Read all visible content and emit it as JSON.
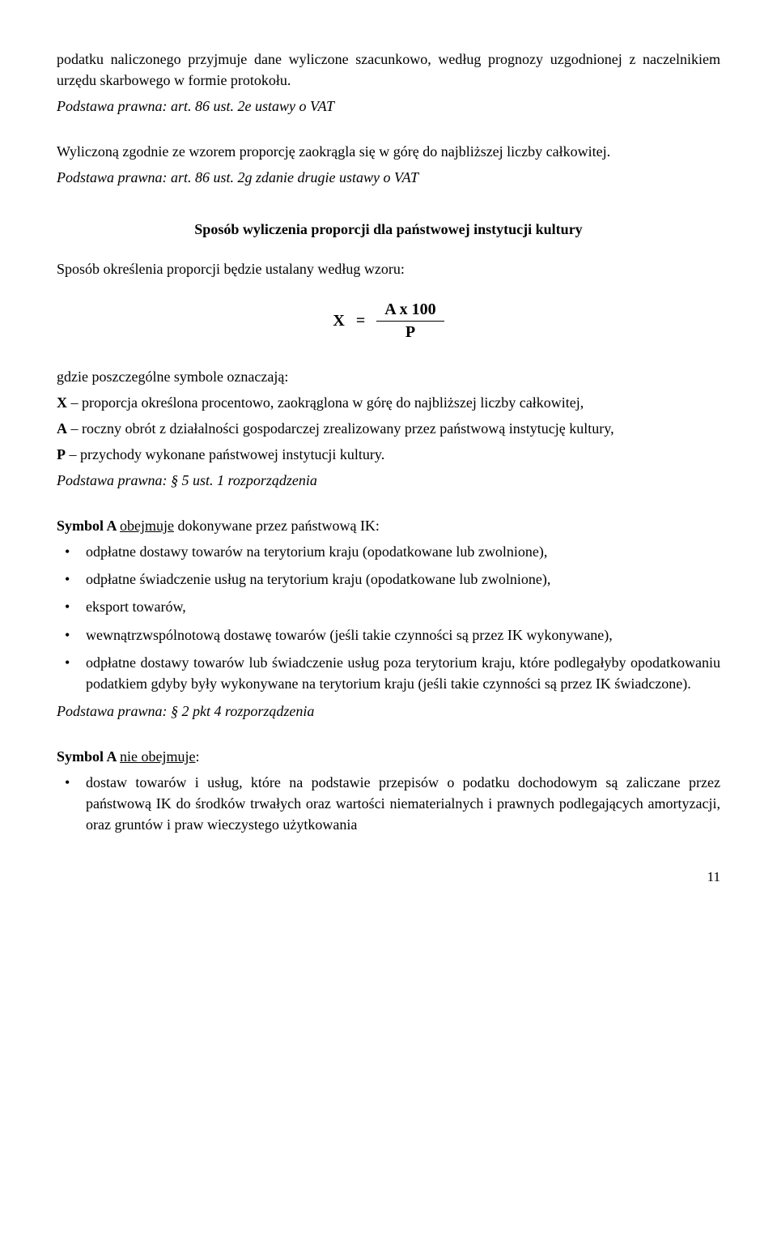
{
  "p1": "podatku naliczonego przyjmuje dane wyliczone szacunkowo, według prognozy uzgodnionej z naczelnikiem urzędu skarbowego w formie protokołu.",
  "p1_basis": "Podstawa prawna: art. 86 ust. 2e ustawy o VAT",
  "p2": "Wyliczoną zgodnie ze wzorem proporcję zaokrągla się w górę do najbliższej liczby całkowitej.",
  "p2_basis": "Podstawa prawna: art. 86 ust. 2g zdanie drugie ustawy o VAT",
  "section_title": "Sposób wyliczenia proporcji dla państwowej instytucji kultury",
  "p3": "Sposób określenia proporcji będzie ustalany według wzoru:",
  "formula": {
    "lhs": "X",
    "eq": "=",
    "numerator": "A x 100",
    "denominator": "P"
  },
  "defs_intro": "gdzie poszczególne symbole oznaczają:",
  "def_x": "X – proporcja określona procentowo, zaokrąglona w górę do najbliższej liczby całkowitej,",
  "def_a": "A – roczny obrót z działalności gospodarczej zrealizowany przez państwową instytucję kultury,",
  "def_p": "P – przychody wykonane państwowej instytucji kultury.",
  "defs_basis": "Podstawa prawna: § 5 ust. 1 rozporządzenia",
  "symA_head_prefix": "Symbol A ",
  "symA_head_under": "obejmuje",
  "symA_head_suffix": " dokonywane przez państwową IK:",
  "symA_items": [
    "odpłatne dostawy towarów na terytorium kraju (opodatkowane lub zwolnione),",
    "odpłatne świadczenie usług na terytorium kraju (opodatkowane lub zwolnione),",
    "eksport towarów,",
    "wewnątrzwspólnotową dostawę towarów (jeśli takie czynności są przez IK wykonywane),",
    "odpłatne dostawy towarów lub świadczenie usług poza terytorium kraju, które podlegałyby opodatkowaniu podatkiem gdyby były wykonywane na terytorium kraju (jeśli takie czynności są przez IK świadczone)."
  ],
  "symA_basis": "Podstawa prawna: § 2 pkt 4 rozporządzenia",
  "symA_not_head_prefix": "Symbol A ",
  "symA_not_head_under": "nie obejmuje",
  "symA_not_head_suffix": ":",
  "symA_not_items": [
    "dostaw towarów i usług, które na podstawie przepisów o podatku dochodowym są zaliczane przez państwową IK do środków trwałych oraz wartości niematerialnych i prawnych podlegających amortyzacji, oraz gruntów i praw wieczystego użytkowania"
  ],
  "page_number": "11"
}
